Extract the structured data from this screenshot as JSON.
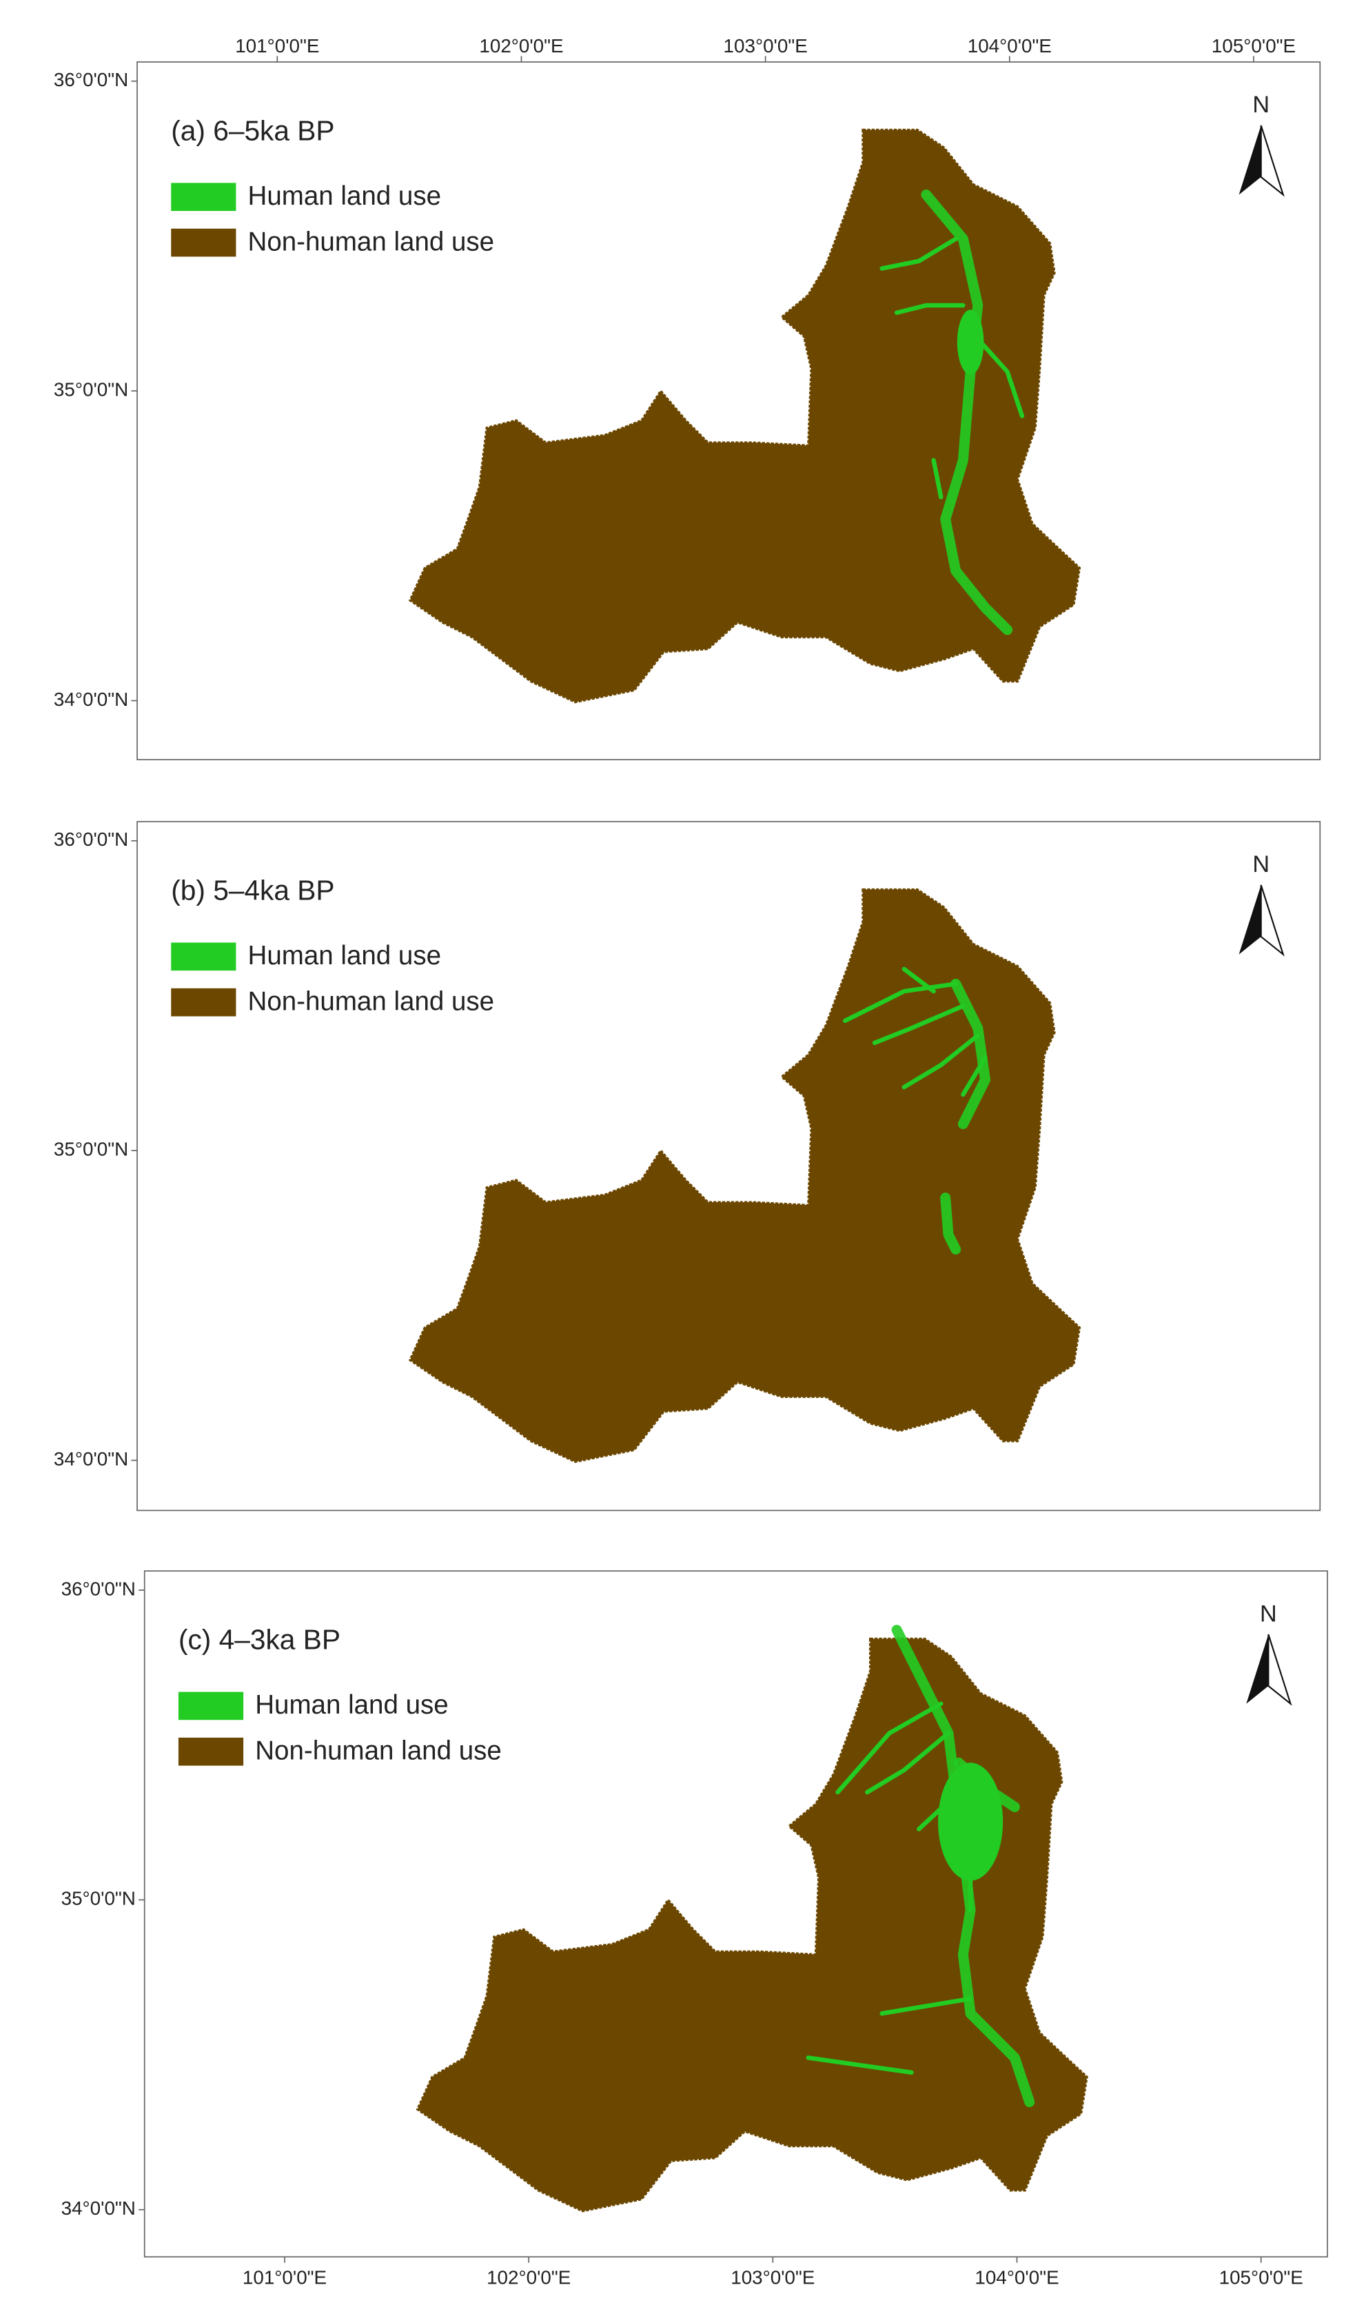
{
  "panels": [
    {
      "label": "(a) 6–5ka BP",
      "legend": [
        {
          "name": "Human land use",
          "color": "#22cc22"
        },
        {
          "name": "Non-human land use",
          "color": "#6b4700"
        }
      ],
      "north": "N",
      "lat_labels": [
        "36°0'0\"N",
        "35°0'0\"N",
        "34°0'0\"N"
      ]
    },
    {
      "label": "(b) 5–4ka BP",
      "legend": [
        {
          "name": "Human land use",
          "color": "#22cc22"
        },
        {
          "name": "Non-human land use",
          "color": "#6b4700"
        }
      ],
      "north": "N",
      "lat_labels": [
        "36°0'0\"N",
        "35°0'0\"N",
        "34°0'0\"N"
      ]
    },
    {
      "label": "(c) 4–3ka BP",
      "legend": [
        {
          "name": "Human land use",
          "color": "#22cc22"
        },
        {
          "name": "Non-human land use",
          "color": "#6b4700"
        }
      ],
      "north": "N",
      "lat_labels": [
        "36°0'0\"N",
        "35°0'0\"N",
        "34°0'0\"N"
      ]
    }
  ],
  "top_lon_labels": [
    "101°0'0\"E",
    "102°0'0\"E",
    "103°0'0\"E",
    "104°0'0\"E",
    "105°0'0\"E"
  ],
  "bottom_lon_labels": [
    "101°0'0\"E",
    "102°0'0\"E",
    "103°0'0\"E",
    "104°0'0\"E",
    "105°0'0\"E"
  ]
}
